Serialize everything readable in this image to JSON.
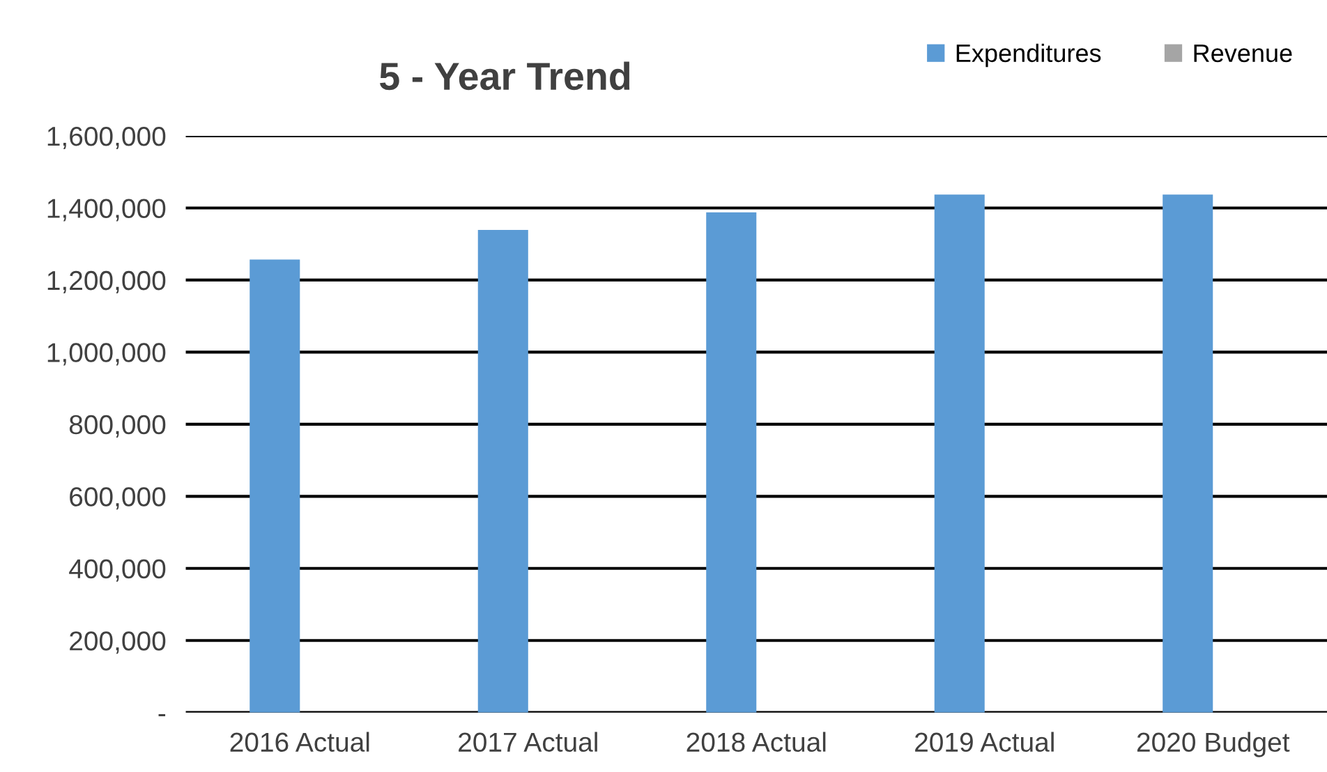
{
  "chart_data": {
    "type": "bar",
    "title": "5 - Year Trend",
    "categories": [
      "2016 Actual",
      "2017 Actual",
      "2018 Actual",
      "2019 Actual",
      "2020 Budget"
    ],
    "series": [
      {
        "name": "Expenditures",
        "color": "#5b9bd5",
        "values": [
          1257000,
          1339000,
          1388000,
          1437000,
          1437000
        ]
      },
      {
        "name": "Revenue",
        "color": "#a5a5a5",
        "values": [
          null,
          null,
          null,
          null,
          null
        ]
      }
    ],
    "ylim": [
      0,
      1600000
    ],
    "yticks": [
      {
        "value": 0,
        "label": "-"
      },
      {
        "value": 200000,
        "label": "200,000"
      },
      {
        "value": 400000,
        "label": "400,000"
      },
      {
        "value": 600000,
        "label": "600,000"
      },
      {
        "value": 800000,
        "label": "800,000"
      },
      {
        "value": 1000000,
        "label": "1,000,000"
      },
      {
        "value": 1200000,
        "label": "1,200,000"
      },
      {
        "value": 1400000,
        "label": "1,400,000"
      },
      {
        "value": 1600000,
        "label": "1,600,000"
      }
    ],
    "grid": "y",
    "legend": "top right"
  }
}
